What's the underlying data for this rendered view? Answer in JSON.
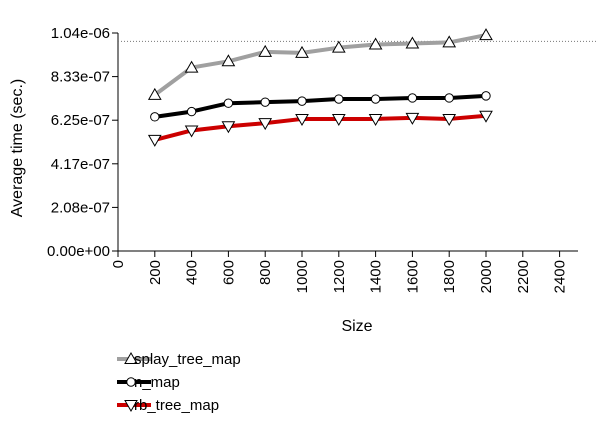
{
  "chart_data": {
    "type": "line",
    "title": "",
    "xlabel": "Size",
    "ylabel": "Average time (sec.)",
    "xlim": [
      0,
      2500
    ],
    "ylim": [
      0,
      1.04e-06
    ],
    "x_ticks": [
      "0",
      "200",
      "400",
      "600",
      "800",
      "1000",
      "1200",
      "1400",
      "1600",
      "1800",
      "2000",
      "2200",
      "2400"
    ],
    "y_ticks": [
      "0.00e+00",
      "2.08e-07",
      "4.17e-07",
      "6.25e-07",
      "8.33e-07",
      "1.04e-06"
    ],
    "reference_line": 1e-06,
    "grid": false,
    "legend_position": "bottom-left",
    "x": [
      200,
      400,
      600,
      800,
      1000,
      1200,
      1400,
      1600,
      1800,
      2000
    ],
    "series": [
      {
        "name": "splay_tree_map",
        "marker": "triangle-up",
        "color": "#a0a0a0",
        "values": [
          7.45e-07,
          8.75e-07,
          9.05e-07,
          9.5e-07,
          9.45e-07,
          9.7e-07,
          9.85e-07,
          9.9e-07,
          9.95e-07,
          1.03e-06
        ]
      },
      {
        "name": "n_map",
        "marker": "circle",
        "color": "#000000",
        "values": [
          6.4e-07,
          6.65e-07,
          7.05e-07,
          7.1e-07,
          7.15e-07,
          7.25e-07,
          7.25e-07,
          7.3e-07,
          7.3e-07,
          7.4e-07
        ]
      },
      {
        "name": "rb_tree_map",
        "marker": "triangle-down",
        "color": "#cc0000",
        "values": [
          5.3e-07,
          5.75e-07,
          5.95e-07,
          6.1e-07,
          6.3e-07,
          6.3e-07,
          6.3e-07,
          6.35e-07,
          6.3e-07,
          6.45e-07
        ]
      }
    ]
  }
}
